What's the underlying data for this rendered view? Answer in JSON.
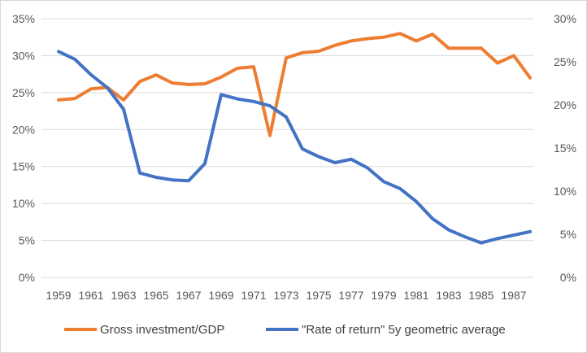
{
  "chart_data": {
    "type": "line",
    "title": "",
    "xlabel": "",
    "ylabel_left": "",
    "ylabel_right": "",
    "x": [
      1959,
      1960,
      1961,
      1962,
      1963,
      1964,
      1965,
      1966,
      1967,
      1968,
      1969,
      1970,
      1971,
      1972,
      1973,
      1974,
      1975,
      1976,
      1977,
      1978,
      1979,
      1980,
      1981,
      1982,
      1983,
      1984,
      1985,
      1986,
      1987,
      1988
    ],
    "x_tick_labels": [
      "1959",
      "1961",
      "1963",
      "1965",
      "1967",
      "1969",
      "1971",
      "1973",
      "1975",
      "1977",
      "1979",
      "1981",
      "1983",
      "1985",
      "1987"
    ],
    "y_left": {
      "lim": [
        0,
        35
      ],
      "step": 5,
      "tick_labels": [
        "0%",
        "5%",
        "10%",
        "15%",
        "20%",
        "25%",
        "30%",
        "35%"
      ]
    },
    "y_right": {
      "lim": [
        0,
        30
      ],
      "step": 5,
      "tick_labels": [
        "0%",
        "5%",
        "10%",
        "15%",
        "20%",
        "25%",
        "30%"
      ]
    },
    "grid": true,
    "legend_position": "bottom",
    "series": [
      {
        "name": "Gross investment/GDP",
        "axis": "left",
        "color": "#ED7D31",
        "values": [
          24.0,
          24.2,
          25.5,
          25.7,
          24.0,
          26.5,
          27.4,
          26.3,
          26.1,
          26.2,
          27.1,
          28.3,
          28.5,
          19.2,
          29.7,
          30.4,
          30.6,
          31.4,
          32.0,
          32.3,
          32.5,
          33.0,
          32.0,
          32.9,
          31.0,
          31.0,
          31.0,
          29.0,
          30.0,
          27.0
        ]
      },
      {
        "name": "\"Rate of return\" 5y geometric average",
        "axis": "right",
        "color": "#4472C4",
        "values": [
          26.2,
          25.3,
          23.5,
          22.0,
          19.5,
          12.1,
          11.6,
          11.3,
          11.2,
          13.2,
          21.2,
          20.7,
          20.4,
          19.9,
          18.6,
          14.9,
          14.0,
          13.3,
          13.7,
          12.7,
          11.1,
          10.3,
          8.8,
          6.8,
          5.5,
          4.7,
          4.0,
          4.5,
          4.9,
          5.3
        ]
      }
    ]
  },
  "colors": {
    "grid": "#d9d9d9",
    "axis_text": "#595959",
    "legend_text": "#404040"
  }
}
